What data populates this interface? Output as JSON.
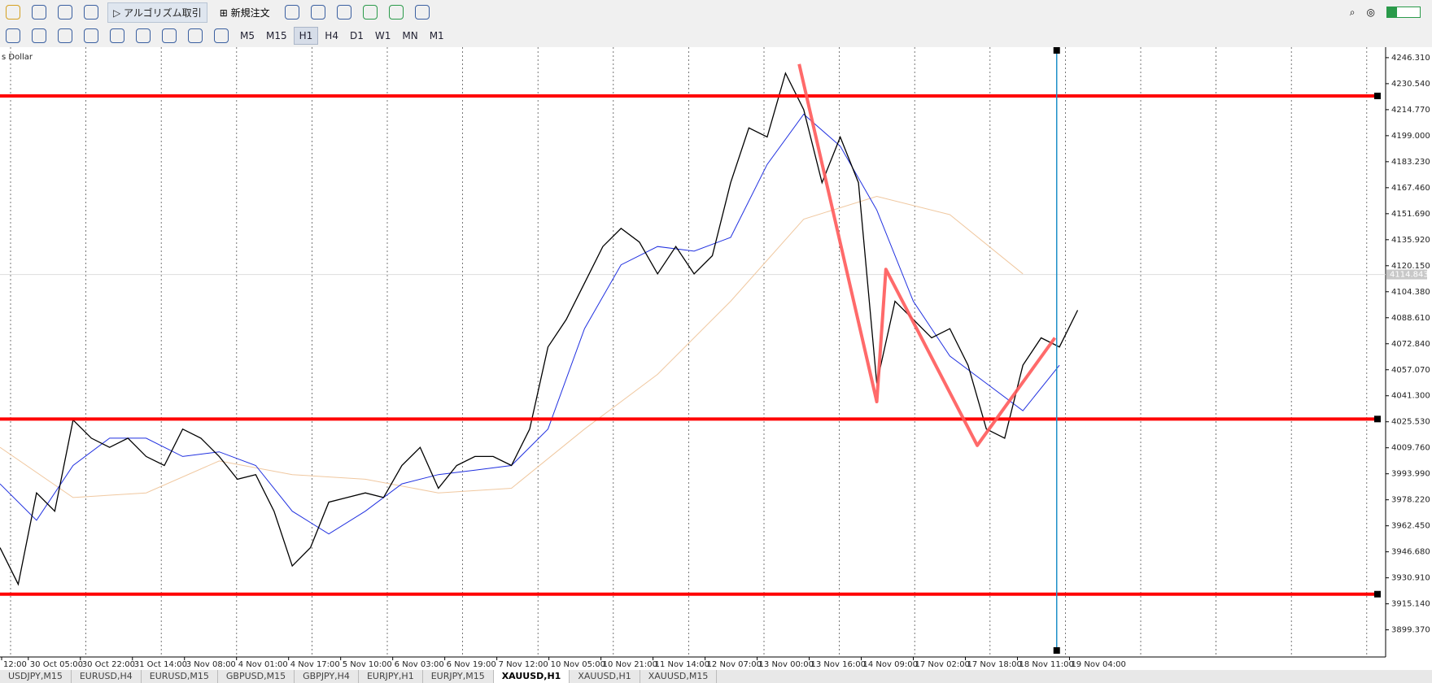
{
  "toolbar": {
    "algo_trading": "アルゴリズム取引",
    "new_order": "新規注文",
    "timeframes": [
      "M5",
      "M15",
      "H1",
      "H4",
      "D1",
      "W1",
      "MN",
      "M1"
    ],
    "active_timeframe": 2
  },
  "chart_data": {
    "type": "line",
    "symbol_label": "s Dollar",
    "ylim": [
      3883.9,
      4250.7
    ],
    "yticks": [
      {
        "value": 4246.31,
        "label": "4246.310"
      },
      {
        "value": 4230.54,
        "label": "4230.540"
      },
      {
        "value": 4214.77,
        "label": "4214.770"
      },
      {
        "value": 4199.0,
        "label": "4199.000"
      },
      {
        "value": 4183.23,
        "label": "4183.230"
      },
      {
        "value": 4167.46,
        "label": "4167.460"
      },
      {
        "value": 4151.69,
        "label": "4151.690"
      },
      {
        "value": 4135.92,
        "label": "4135.920"
      },
      {
        "value": 4120.15,
        "label": "4120.150"
      },
      {
        "value": 4104.38,
        "label": "4104.380"
      },
      {
        "value": 4088.61,
        "label": "4088.610"
      },
      {
        "value": 4072.84,
        "label": "4072.840"
      },
      {
        "value": 4057.07,
        "label": "4057.070"
      },
      {
        "value": 4041.3,
        "label": "4041.300"
      },
      {
        "value": 4025.53,
        "label": "4025.530"
      },
      {
        "value": 4009.76,
        "label": "4009.760"
      },
      {
        "value": 3993.99,
        "label": "3993.990"
      },
      {
        "value": 3978.22,
        "label": "3978.220"
      },
      {
        "value": 3962.45,
        "label": "3962.450"
      },
      {
        "value": 3946.68,
        "label": "3946.680"
      },
      {
        "value": 3930.91,
        "label": "3930.910"
      },
      {
        "value": 3915.14,
        "label": "3915.140"
      },
      {
        "value": 3899.37,
        "label": "3899.370"
      }
    ],
    "current_price": {
      "value": 4114.843,
      "label": "4114.843"
    },
    "categories": [
      "12:00",
      "30 Oct 05:00",
      "30 Oct 22:00",
      "31 Oct 14:00",
      "3 Nov 08:00",
      "4 Nov 01:00",
      "4 Nov 17:00",
      "5 Nov 10:00",
      "6 Nov 03:00",
      "6 Nov 19:00",
      "7 Nov 12:00",
      "10 Nov 05:00",
      "10 Nov 21:00",
      "11 Nov 14:00",
      "12 Nov 07:00",
      "13 Nov 00:00",
      "13 Nov 16:00",
      "14 Nov 09:00",
      "17 Nov 02:00",
      "17 Nov 18:00",
      "18 Nov 11:00",
      "19 Nov 04:00"
    ],
    "close": {
      "color": "#000000",
      "values": [
        3949.2,
        3927.0,
        3982.4,
        3971.3,
        4026.6,
        4015.6,
        4010.0,
        4015.6,
        4004.5,
        3999.0,
        4021.1,
        4015.6,
        4004.5,
        3990.7,
        3993.5,
        3971.3,
        3938.1,
        3949.2,
        3976.8,
        3979.6,
        3982.4,
        3979.6,
        3999.0,
        4010.0,
        3985.2,
        3999.0,
        4004.5,
        4004.5,
        3999.0,
        4021.1,
        4070.9,
        4087.5,
        4109.6,
        4131.8,
        4142.8,
        4134.5,
        4115.2,
        4131.8,
        4115.2,
        4126.2,
        4170.5,
        4203.7,
        4198.2,
        4236.9,
        4214.8,
        4170.5,
        4198.2,
        4170.5,
        4048.8,
        4098.6,
        4087.5,
        4076.4,
        4082.0,
        4059.8,
        4021.1,
        4015.6,
        4059.8,
        4076.4,
        4070.9,
        4093.2
      ]
    },
    "ma_fast": {
      "color": "#2030e0",
      "step": 2,
      "values": [
        3987.9,
        3965.8,
        3999.0,
        4015.6,
        4015.6,
        4004.5,
        4007.3,
        3999.0,
        3971.3,
        3957.5,
        3971.3,
        3987.9,
        3993.5,
        3996.2,
        3999.0,
        4021.1,
        4082.0,
        4120.7,
        4131.8,
        4129.0,
        4137.3,
        4181.6,
        4212.0,
        4192.6,
        4153.9,
        4098.6,
        4065.4,
        4048.8,
        4032.2,
        4059.8
      ]
    },
    "ma_slow": {
      "color": "#f0c8a0",
      "step": 4,
      "values": [
        4010.0,
        3979.6,
        3982.4,
        4001.8,
        3993.5,
        3990.7,
        3982.4,
        3985.2,
        4021.1,
        4054.3,
        4098.6,
        4148.4,
        4162.2,
        4151.1,
        4115.2
      ]
    },
    "levels": {
      "color": "#ff0000",
      "values": [
        4223.1,
        4027.2,
        3921.0
      ]
    },
    "zigzag": {
      "color": "#ff5a5a",
      "x": [
        43.75,
        48,
        48.5,
        53.5,
        57.75
      ],
      "values": [
        4242.4,
        4037.7,
        4118.0,
        4011.2,
        4076.4
      ]
    },
    "vline": {
      "color": "#1e90c8",
      "x": 57.85
    }
  },
  "tabs": [
    "USDJPY,M15",
    "EURUSD,H4",
    "EURUSD,M15",
    "GBPUSD,M15",
    "GBPJPY,H4",
    "EURJPY,H1",
    "EURJPY,M15",
    "XAUUSD,H1",
    "XAUUSD,H1",
    "XAUUSD,M15"
  ],
  "active_tab": 7
}
